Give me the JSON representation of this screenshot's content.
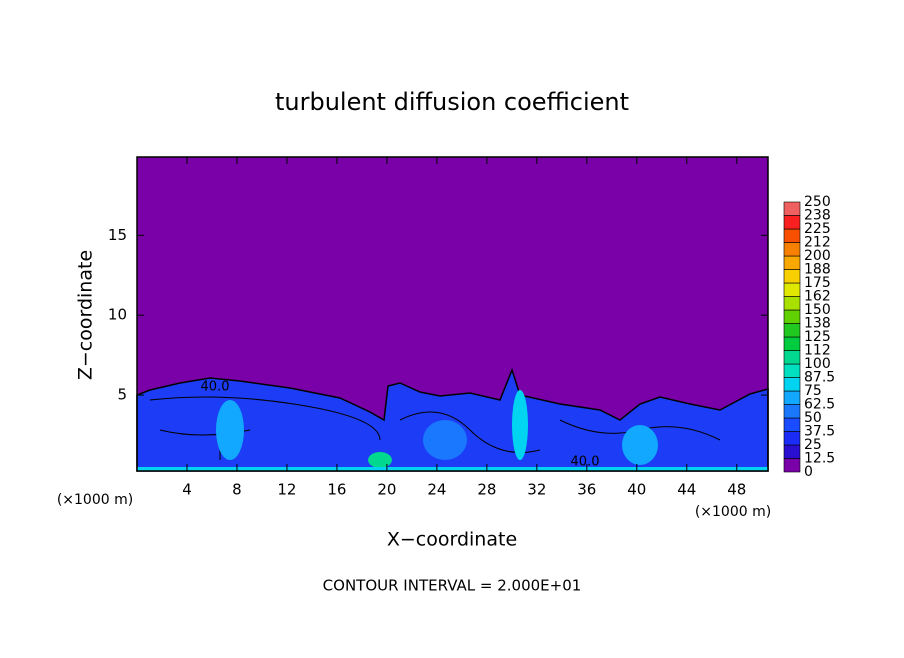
{
  "chart_data": {
    "type": "contour",
    "title": "turbulent diffusion coefficient",
    "xlabel": "X−coordinate",
    "ylabel": "Z−coordinate",
    "x_unit_labels": [
      "(×1000 m)",
      "(×1000 m)"
    ],
    "annotation": "CONTOUR INTERVAL = 2.000E+01",
    "contour_labels": [
      {
        "value": 40,
        "label": "40.0"
      },
      {
        "value": 40,
        "label": "40.0"
      }
    ],
    "xlim": [
      0,
      50.5
    ],
    "xticks": [
      4,
      8,
      12,
      16,
      20,
      24,
      28,
      32,
      36,
      40,
      44,
      48
    ],
    "ylim": [
      0.25,
      19.9
    ],
    "yticks": [
      5,
      10,
      15
    ],
    "levels": [
      0,
      12.5,
      25,
      37.5,
      50,
      62.5,
      75,
      87.5,
      100,
      112,
      125,
      138,
      150,
      162,
      175,
      188,
      200,
      212,
      225,
      238,
      250
    ],
    "colors": [
      "#7a00a8",
      "#2a0fd0",
      "#1a2cf5",
      "#1a4cff",
      "#1a78ff",
      "#12a8ff",
      "#00d4f0",
      "#00e0c0",
      "#00d890",
      "#00cc40",
      "#20c820",
      "#60d000",
      "#a8e000",
      "#e0e800",
      "#f8d000",
      "#f8a800",
      "#f88000",
      "#f85000",
      "#f82020",
      "#f06060"
    ]
  }
}
